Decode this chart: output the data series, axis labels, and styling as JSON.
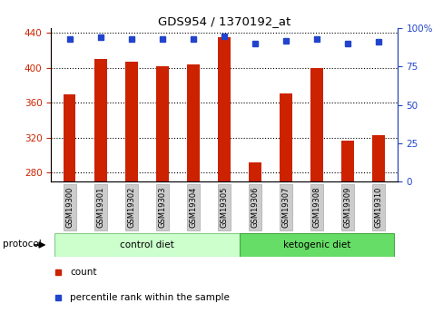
{
  "title": "GDS954 / 1370192_at",
  "samples": [
    "GSM19300",
    "GSM19301",
    "GSM19302",
    "GSM19303",
    "GSM19304",
    "GSM19305",
    "GSM19306",
    "GSM19307",
    "GSM19308",
    "GSM19309",
    "GSM19310"
  ],
  "counts": [
    370,
    410,
    407,
    402,
    404,
    435,
    292,
    371,
    400,
    317,
    323
  ],
  "percentile_ranks": [
    93,
    94,
    93,
    93,
    93,
    95,
    90,
    92,
    93,
    90,
    91
  ],
  "ylim_left": [
    270,
    445
  ],
  "ylim_right": [
    0,
    100
  ],
  "yticks_left": [
    280,
    320,
    360,
    400,
    440
  ],
  "yticks_right": [
    0,
    25,
    50,
    75,
    100
  ],
  "bar_color": "#cc2200",
  "dot_color": "#2244cc",
  "background_color": "#ffffff",
  "plot_bg_color": "#ffffff",
  "tick_label_color_left": "#cc2200",
  "tick_label_color_right": "#2244cc",
  "groups": [
    {
      "label": "control diet",
      "start": 0,
      "end": 5,
      "color": "#ccffcc",
      "border_color": "#88cc88"
    },
    {
      "label": "ketogenic diet",
      "start": 6,
      "end": 10,
      "color": "#66dd66",
      "border_color": "#44aa44"
    }
  ],
  "protocol_label": "protocol",
  "legend": [
    {
      "color": "#cc2200",
      "label": "count"
    },
    {
      "color": "#2244cc",
      "label": "percentile rank within the sample"
    }
  ],
  "bar_width": 0.4,
  "label_box_color": "#cccccc",
  "label_box_edge_color": "#aaaaaa"
}
